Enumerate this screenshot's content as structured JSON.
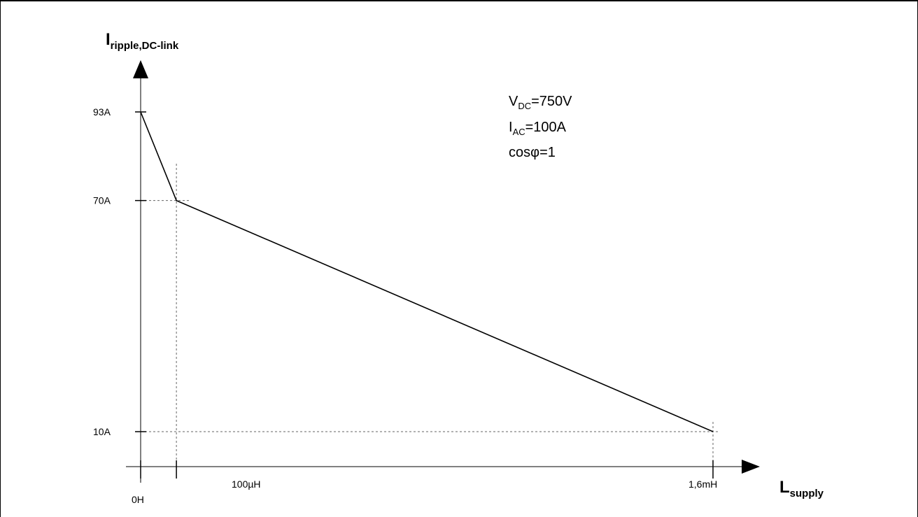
{
  "chart_data": {
    "type": "line",
    "x_axis": {
      "label_main": "L",
      "label_sub": "supply",
      "ticks": [
        {
          "value": 0,
          "label": "0H"
        },
        {
          "value": 100,
          "label": "100µH"
        },
        {
          "value": 1600,
          "label": "1,6mH"
        }
      ]
    },
    "y_axis": {
      "label_main": "I",
      "label_sub": "ripple,DC-link",
      "ticks": [
        {
          "value": 93,
          "label": "93A"
        },
        {
          "value": 70,
          "label": "70A"
        },
        {
          "value": 10,
          "label": "10A"
        }
      ]
    },
    "series": [
      {
        "x": [
          0,
          100,
          1600
        ],
        "y": [
          93,
          70,
          10
        ]
      }
    ],
    "grid": "dashed guides at marked points",
    "annotations": {
      "vdc": {
        "main": "V",
        "sub": "DC",
        "rest": "=750V"
      },
      "iac": {
        "main": "I",
        "sub": "AC",
        "rest": "=100A"
      },
      "cos": {
        "text": "cosφ=1"
      }
    }
  }
}
